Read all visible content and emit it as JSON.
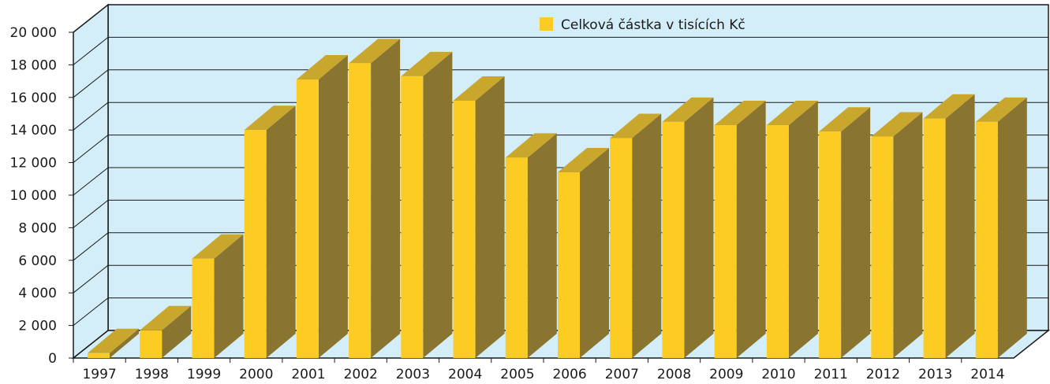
{
  "chart_data": {
    "type": "bar",
    "categories": [
      "1997",
      "1998",
      "1999",
      "2000",
      "2001",
      "2002",
      "2003",
      "2004",
      "2005",
      "2006",
      "2007",
      "2008",
      "2009",
      "2010",
      "2011",
      "2012",
      "2013",
      "2014"
    ],
    "series": [
      {
        "name": "Celková částka v tisících Kč",
        "values": [
          300,
          1700,
          6100,
          14000,
          17100,
          18100,
          17300,
          15800,
          12300,
          11400,
          13500,
          14500,
          14300,
          14300,
          13900,
          13600,
          14700,
          14500
        ]
      }
    ],
    "ylim": [
      0,
      20000
    ],
    "yticks": [
      "0",
      "2 000",
      "4 000",
      "6 000",
      "8 000",
      "10 000",
      "12 000",
      "14 000",
      "16 000",
      "18 000",
      "20 000"
    ],
    "grid": true,
    "legend_position": "top",
    "three_d": true,
    "title": "",
    "xlabel": "",
    "ylabel": ""
  },
  "colors": {
    "wall": "#d3eef8",
    "floor": "#d3eef8",
    "bar_front": "#fccc22",
    "bar_top": "#c9a62c",
    "bar_side": "#8a7530",
    "grid": "#1a1a1a",
    "legend_swatch": "#fccc22"
  }
}
